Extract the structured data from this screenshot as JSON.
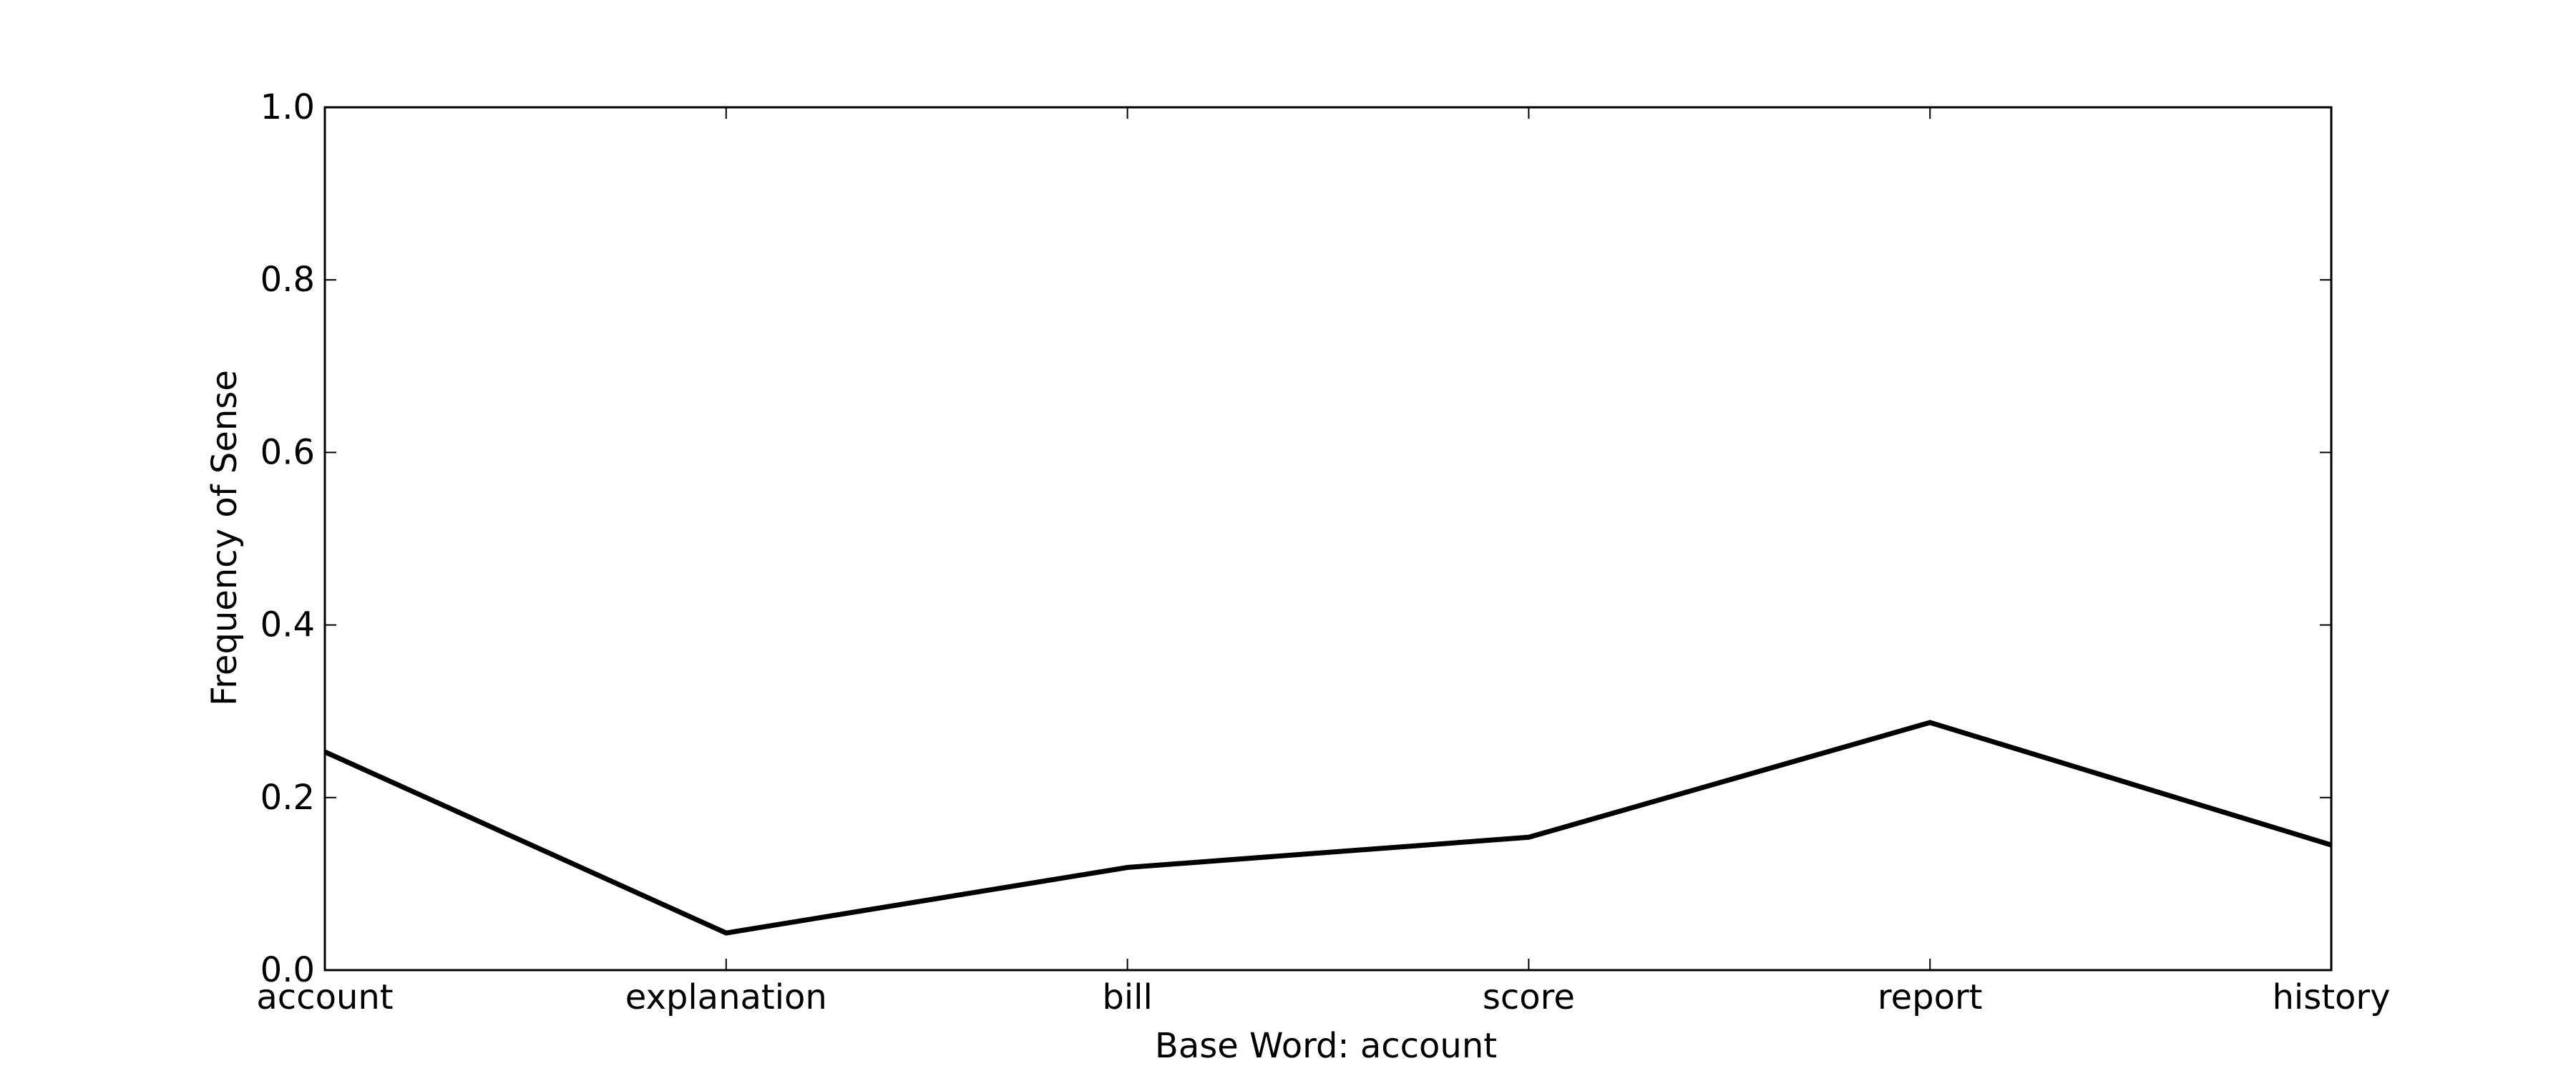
{
  "chart_data": {
    "type": "line",
    "title": "",
    "xlabel": "Base Word: account",
    "ylabel": "Frequency of Sense",
    "categories": [
      "account",
      "explanation",
      "bill",
      "score",
      "report",
      "history"
    ],
    "series": [
      {
        "values": [
          0.253,
          0.043,
          0.119,
          0.154,
          0.287,
          0.145
        ],
        "color": "#000000"
      }
    ],
    "ylim": [
      0.0,
      1.0
    ],
    "yticks": [
      0.0,
      0.2,
      0.4,
      0.6,
      0.8,
      1.0
    ],
    "ytick_labels": [
      "0.0",
      "0.2",
      "0.4",
      "0.6",
      "0.8",
      "1.0"
    ],
    "grid": false,
    "legend": "none"
  }
}
